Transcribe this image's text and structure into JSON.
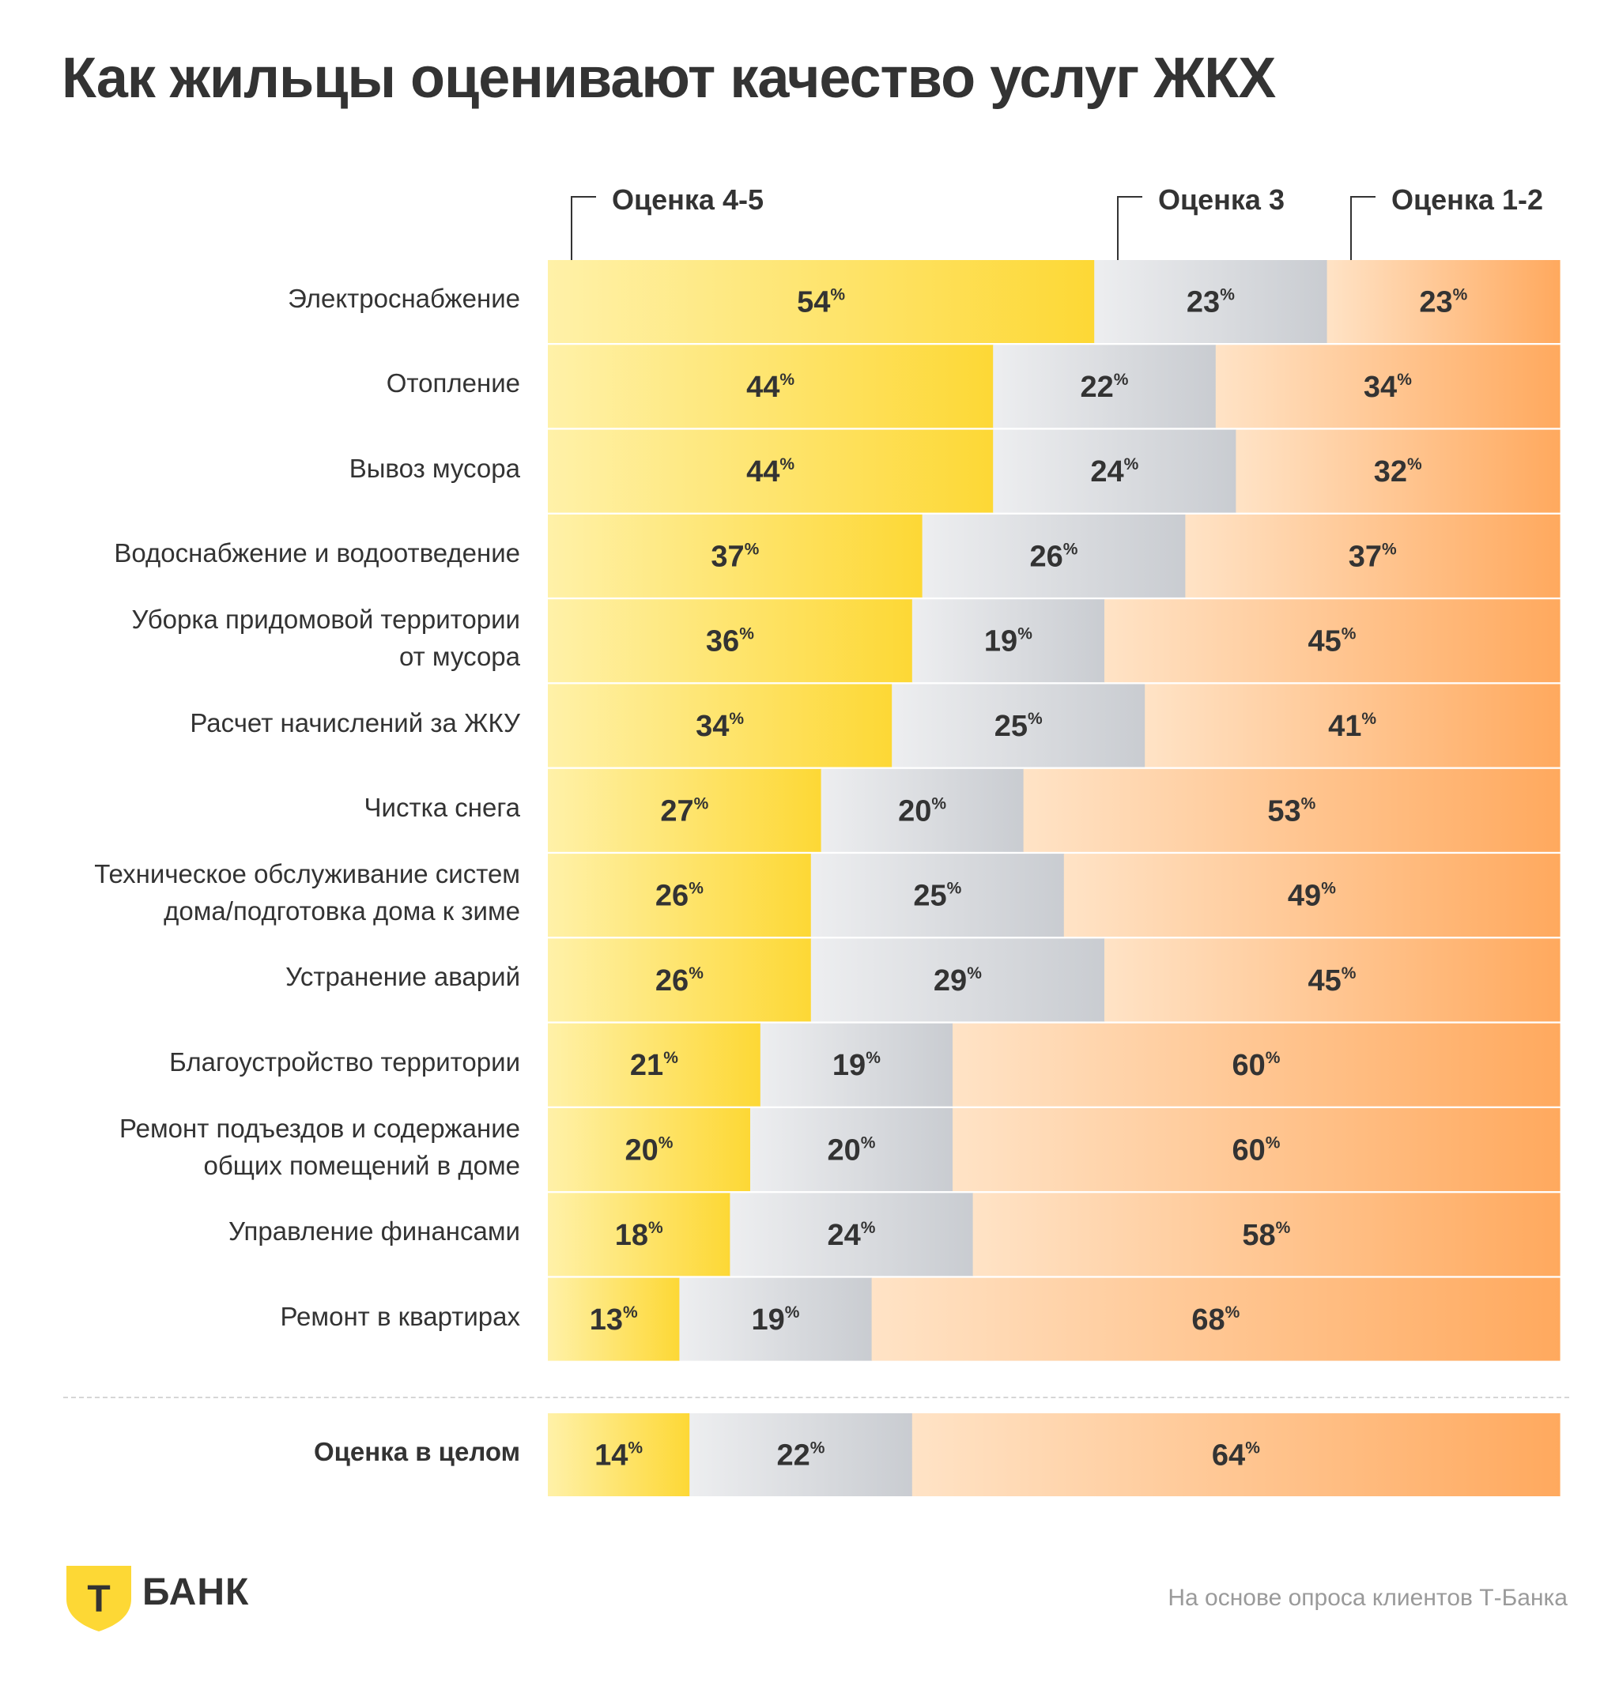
{
  "title": "Как жильцы оценивают качество услуг ЖКХ",
  "legend": [
    "Оценка 4-5",
    "Оценка 3",
    "Оценка 1-2"
  ],
  "colors": {
    "good": "#fdd835",
    "good_light": "#fff1a8",
    "neutral": "#c9ccd1",
    "neutral_light": "#edeef0",
    "bad": "#ffa95e",
    "bad_light": "#ffe3c6",
    "text": "#333333"
  },
  "footer": {
    "logo_letter": "Т",
    "logo_text": "БАНК",
    "source": "На основе опроса клиентов Т-Банка"
  },
  "chart_data": {
    "type": "bar",
    "orientation": "horizontal",
    "stacked": true,
    "percent_symbol": "%",
    "categories": [
      [
        "Электроснабжение"
      ],
      [
        "Отопление"
      ],
      [
        "Вывоз мусора"
      ],
      [
        "Водоснабжение и водоотведение"
      ],
      [
        "Уборка придомовой территории",
        "от мусора"
      ],
      [
        "Расчет начислений за ЖКУ"
      ],
      [
        "Чистка снега"
      ],
      [
        "Техническое обслуживание систем",
        "дома/подготовка дома к зиме"
      ],
      [
        "Устранение аварий"
      ],
      [
        "Благоустройство территории"
      ],
      [
        "Ремонт подъездов и содержание",
        "общих помещений в доме"
      ],
      [
        "Управление финансами"
      ],
      [
        "Ремонт в квартирах"
      ]
    ],
    "series": [
      {
        "name": "Оценка 4-5",
        "values": [
          54,
          44,
          44,
          37,
          36,
          34,
          27,
          26,
          26,
          21,
          20,
          18,
          13
        ]
      },
      {
        "name": "Оценка 3",
        "values": [
          23,
          22,
          24,
          26,
          19,
          25,
          20,
          25,
          29,
          19,
          20,
          24,
          19
        ]
      },
      {
        "name": "Оценка 1-2",
        "values": [
          23,
          34,
          32,
          37,
          45,
          41,
          53,
          49,
          45,
          60,
          60,
          58,
          68
        ]
      }
    ],
    "summary": {
      "label": "Оценка в целом",
      "values": [
        14,
        22,
        64
      ]
    },
    "xlim": [
      0,
      100
    ]
  }
}
